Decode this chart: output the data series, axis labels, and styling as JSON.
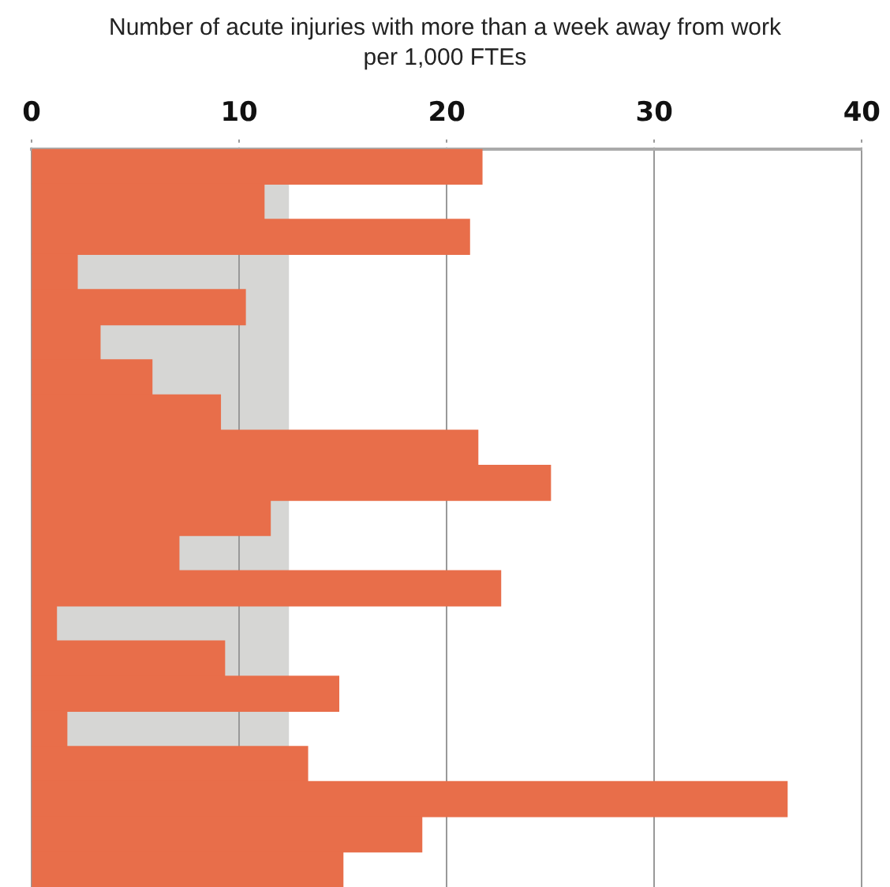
{
  "chart_data": {
    "type": "bar",
    "orientation": "horizontal",
    "title": "Number of acute injuries with more than a week away from work per 1,000 FTEs",
    "categories": [
      null,
      null,
      null,
      null,
      null,
      null,
      null,
      null,
      null,
      null,
      null,
      null,
      null,
      null,
      null,
      null,
      null,
      null,
      null,
      null,
      null
    ],
    "values": [
      21.7,
      11.2,
      21.1,
      2.2,
      10.3,
      3.3,
      5.8,
      9.1,
      21.5,
      25.0,
      11.5,
      7.1,
      22.6,
      1.2,
      9.3,
      14.8,
      1.7,
      13.3,
      36.4,
      18.8,
      15.0
    ],
    "color": "#e86e4a",
    "xlim": [
      0,
      40
    ],
    "xticks": [
      0,
      10,
      20,
      30,
      40
    ],
    "grid": "x",
    "bands": [
      {
        "axis": "x",
        "from": 0,
        "to": 12.4,
        "color": "#d6d6d4"
      }
    ]
  }
}
